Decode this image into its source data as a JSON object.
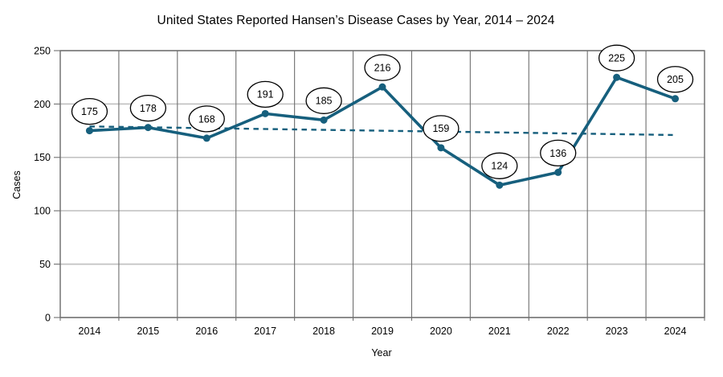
{
  "chart_data": {
    "type": "line",
    "title": "United States Reported Hansen’s Disease Cases by Year, 2014 – 2024",
    "xlabel": "Year",
    "ylabel": "Cases",
    "categories": [
      "2014",
      "2015",
      "2016",
      "2017",
      "2018",
      "2019",
      "2020",
      "2021",
      "2022",
      "2023",
      "2024"
    ],
    "values": [
      175,
      178,
      168,
      191,
      185,
      216,
      159,
      124,
      136,
      225,
      205
    ],
    "ylim": [
      0,
      250
    ],
    "yticks": [
      0,
      50,
      100,
      150,
      200,
      250
    ],
    "grid": "both",
    "legend": "none",
    "data_labels": true,
    "trendline": {
      "style": "dashed",
      "start_value": 179,
      "end_value": 171
    },
    "colors": {
      "series": "#165F7D",
      "trend": "#165F7D",
      "grid_horizontal": "#C3C3C3",
      "grid_vertical": "#6F6F6F",
      "axis": "#6F6F6F",
      "label_bubble_fill": "#FFFFFF",
      "label_bubble_stroke": "#000000",
      "text": "#000000"
    }
  }
}
